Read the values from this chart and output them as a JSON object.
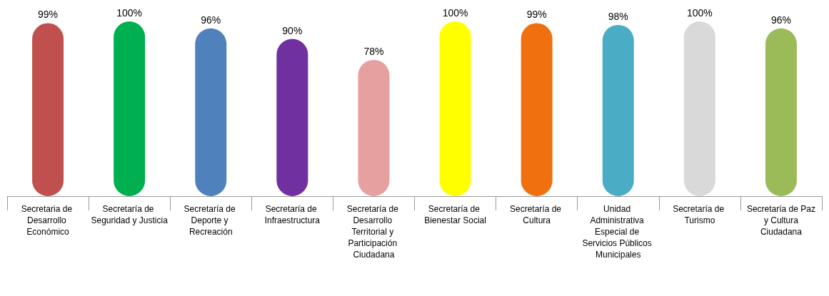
{
  "chart_data": {
    "type": "bar",
    "categories": [
      "Secretaria de Desarrollo Económico",
      "Secretaría de Seguridad y Justicia",
      "Secretaría de Deporte y Recreación",
      "Secretaría de Infraestructura",
      "Secretaría de Desarrollo Territorial y Participación Ciudadana",
      "Secretaría de Bienestar Social",
      "Secretaría de Cultura",
      "Unidad Administrativa Especial de Servicios Públicos Municipales",
      "Secretaría de Turismo",
      "Secretaría de Paz y Cultura Ciudadana"
    ],
    "values": [
      99,
      100,
      96,
      90,
      78,
      100,
      99,
      98,
      100,
      96
    ],
    "value_labels": [
      "99%",
      "100%",
      "96%",
      "90%",
      "78%",
      "100%",
      "99%",
      "98%",
      "100%",
      "96%"
    ],
    "colors": [
      "#c0504d",
      "#00b050",
      "#4f81bd",
      "#7030a0",
      "#e6a0a0",
      "#ffff00",
      "#f07010",
      "#4bacc6",
      "#d9d9d9",
      "#9bbb59"
    ],
    "grid": false
  }
}
